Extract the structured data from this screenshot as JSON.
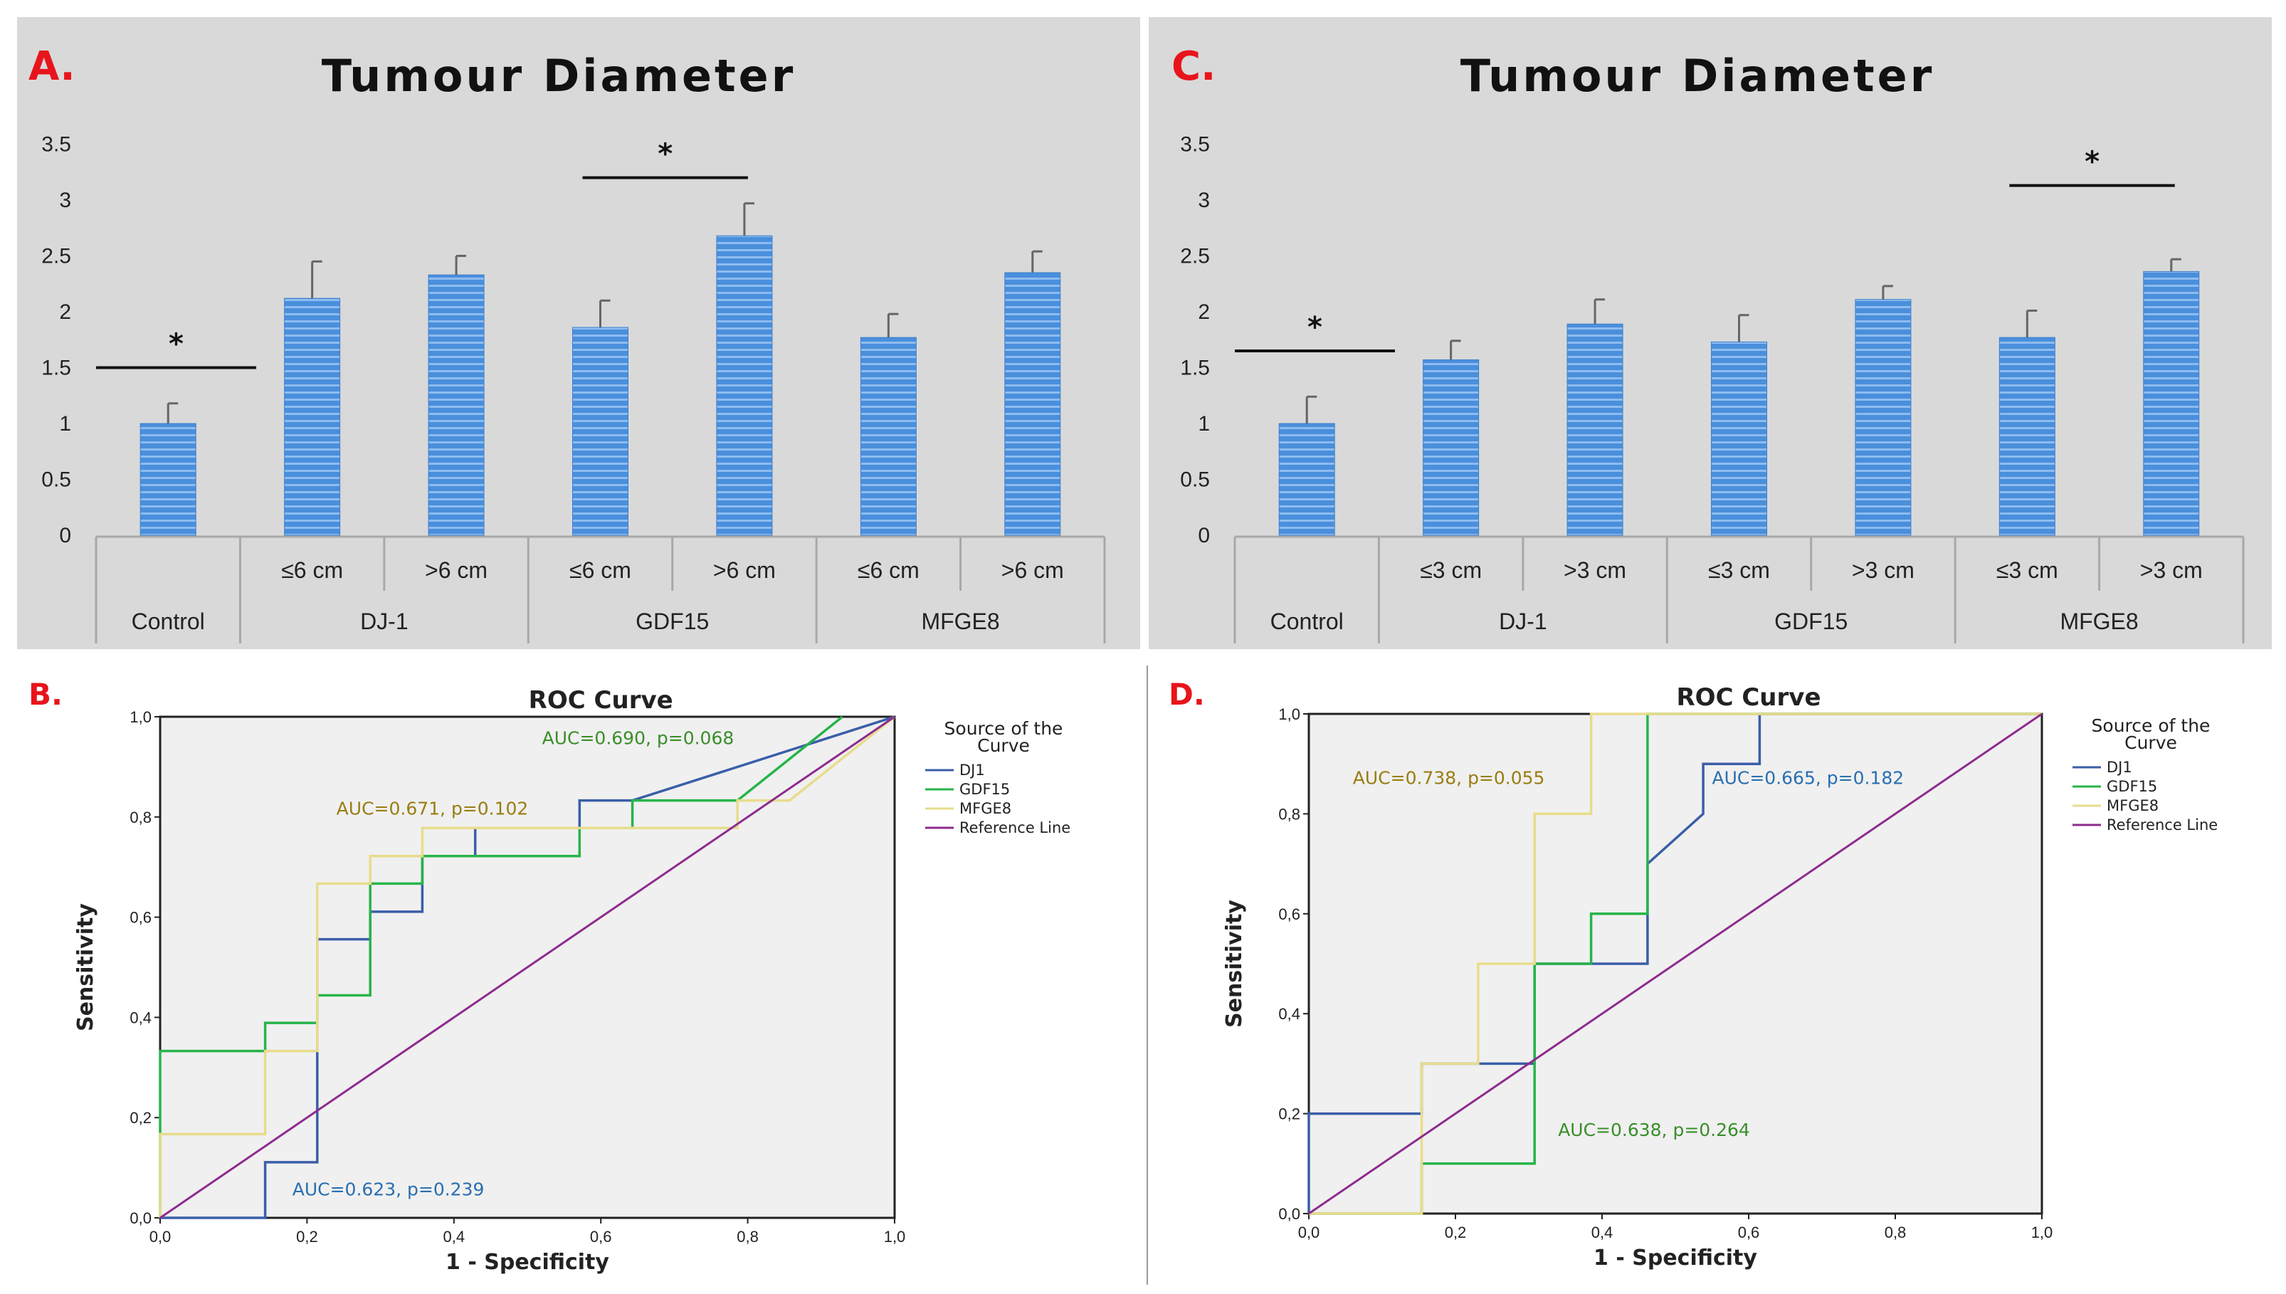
{
  "panels": {
    "A": {
      "letter": "A."
    },
    "B": {
      "letter": "B."
    },
    "C": {
      "letter": "C."
    },
    "D": {
      "letter": "D."
    }
  },
  "colors": {
    "panel_bg": "#d9d9d9",
    "bar_fill": "#4a8fdc",
    "bar_stripe": "#8fbcf0",
    "letter": "#e8141b",
    "roc_bg": "#f0f0f0",
    "dj1": "#3a5ea8",
    "gdf15": "#27b44a",
    "mfge8": "#e8dc8c",
    "reference": "#8e2b8e",
    "auc_gold": "#9a7d12",
    "auc_blue": "#2a6fb0",
    "auc_green": "#3a8e2a"
  },
  "chart_data": [
    {
      "panel": "A",
      "type": "bar",
      "title": "Tumour Diameter",
      "ylim": [
        0,
        3.5
      ],
      "yticks": [
        "0",
        "0.5",
        "1",
        "1.5",
        "2",
        "2.5",
        "3",
        "3.5"
      ],
      "groups": [
        "Control",
        "DJ-1",
        "GDF15",
        "MFGE8"
      ],
      "categories": [
        "",
        "≤6 cm",
        ">6 cm",
        "≤6 cm",
        ">6 cm",
        "≤6 cm",
        ">6 cm"
      ],
      "values": [
        1.0,
        2.12,
        2.33,
        1.86,
        2.68,
        1.77,
        2.35
      ],
      "errors": [
        0.18,
        0.33,
        0.17,
        0.24,
        0.29,
        0.21,
        0.19
      ],
      "significance": [
        {
          "label": "*",
          "from": 0,
          "to": 0,
          "y": 1.5
        },
        {
          "label": "*",
          "from": 3,
          "to": 4,
          "y": 3.2
        }
      ]
    },
    {
      "panel": "C",
      "type": "bar",
      "title": "Tumour Diameter",
      "ylim": [
        0,
        3.5
      ],
      "yticks": [
        "0",
        "0.5",
        "1",
        "1.5",
        "2",
        "2.5",
        "3",
        "3.5"
      ],
      "groups": [
        "Control",
        "DJ-1",
        "GDF15",
        "MFGE8"
      ],
      "categories": [
        "",
        "≤3 cm",
        ">3 cm",
        "≤3 cm",
        ">3 cm",
        "≤3 cm",
        ">3 cm"
      ],
      "values": [
        1.0,
        1.57,
        1.89,
        1.73,
        2.11,
        1.77,
        2.36
      ],
      "errors": [
        0.24,
        0.17,
        0.22,
        0.24,
        0.12,
        0.24,
        0.11
      ],
      "significance": [
        {
          "label": "*",
          "from": 0,
          "to": 0,
          "y": 1.65
        },
        {
          "label": "*",
          "from": 5,
          "to": 6,
          "y": 3.13
        }
      ]
    },
    {
      "panel": "B",
      "type": "line",
      "title": "ROC Curve",
      "xlabel": "1 - Specificity",
      "ylabel": "Sensitivity",
      "xlim": [
        0,
        1
      ],
      "ylim": [
        0,
        1
      ],
      "ticks": [
        "0,0",
        "0,2",
        "0,4",
        "0,6",
        "0,8",
        "1,0"
      ],
      "legend_title": [
        "Source of the",
        "Curve"
      ],
      "series": [
        {
          "name": "DJ1",
          "color_key": "dj1",
          "x": [
            0,
            0.143,
            0.143,
            0.214,
            0.214,
            0.286,
            0.286,
            0.357,
            0.357,
            0.429,
            0.429,
            0.571,
            0.571,
            0.643,
            0.643,
            1.0
          ],
          "y": [
            0,
            0,
            0.111,
            0.111,
            0.556,
            0.556,
            0.611,
            0.611,
            0.722,
            0.722,
            0.778,
            0.778,
            0.833,
            0.833,
            0.833,
            1.0
          ]
        },
        {
          "name": "GDF15",
          "color_key": "gdf15",
          "x": [
            0,
            0,
            0.143,
            0.143,
            0.214,
            0.214,
            0.286,
            0.286,
            0.357,
            0.357,
            0.571,
            0.571,
            0.643,
            0.643,
            0.786,
            0.929
          ],
          "y": [
            0,
            0.333,
            0.333,
            0.389,
            0.389,
            0.444,
            0.444,
            0.667,
            0.667,
            0.722,
            0.722,
            0.778,
            0.778,
            0.833,
            0.833,
            1.0
          ]
        },
        {
          "name": "MFGE8",
          "color_key": "mfge8",
          "x": [
            0,
            0,
            0.143,
            0.143,
            0.214,
            0.214,
            0.286,
            0.286,
            0.357,
            0.357,
            0.786,
            0.786,
            0.857,
            1.0
          ],
          "y": [
            0,
            0.167,
            0.167,
            0.333,
            0.333,
            0.667,
            0.667,
            0.722,
            0.722,
            0.778,
            0.778,
            0.833,
            0.833,
            1.0
          ]
        },
        {
          "name": "Reference Line",
          "color_key": "reference",
          "x": [
            0,
            1
          ],
          "y": [
            0,
            1
          ]
        }
      ],
      "annotations": [
        {
          "text": "AUC=0.690, p=0.068",
          "x": 0.52,
          "y": 0.945,
          "color_key": "auc_green"
        },
        {
          "text": "AUC=0.671, p=0.102",
          "x": 0.24,
          "y": 0.805,
          "color_key": "auc_gold"
        },
        {
          "text": "AUC=0.623, p=0.239",
          "x": 0.18,
          "y": 0.045,
          "color_key": "auc_blue"
        }
      ]
    },
    {
      "panel": "D",
      "type": "line",
      "title": "ROC Curve",
      "xlabel": "1 - Specificity",
      "ylabel": "Sensitivity",
      "xlim": [
        0,
        1
      ],
      "ylim": [
        0,
        1
      ],
      "ticks": [
        "0,0",
        "0,2",
        "0,4",
        "0,6",
        "0,8",
        "1,0"
      ],
      "legend_title": [
        "Source of the",
        "Curve"
      ],
      "series": [
        {
          "name": "DJ1",
          "color_key": "dj1",
          "x": [
            0,
            0,
            0.154,
            0.154,
            0.231,
            0.231,
            0.308,
            0.308,
            0.385,
            0.385,
            0.462,
            0.462,
            0.538,
            0.538,
            0.615,
            0.615,
            1.0
          ],
          "y": [
            0,
            0.2,
            0.2,
            0.3,
            0.3,
            0.3,
            0.3,
            0.5,
            0.5,
            0.5,
            0.5,
            0.7,
            0.8,
            0.9,
            0.9,
            1.0,
            1.0
          ]
        },
        {
          "name": "GDF15",
          "color_key": "gdf15",
          "x": [
            0,
            0.154,
            0.154,
            0.308,
            0.308,
            0.385,
            0.385,
            0.462,
            0.462,
            1.0
          ],
          "y": [
            0,
            0,
            0.1,
            0.1,
            0.5,
            0.5,
            0.6,
            0.6,
            1.0,
            1.0
          ]
        },
        {
          "name": "MFGE8",
          "color_key": "mfge8",
          "x": [
            0,
            0.154,
            0.154,
            0.231,
            0.231,
            0.308,
            0.308,
            0.385,
            0.385,
            1.0
          ],
          "y": [
            0,
            0,
            0.3,
            0.3,
            0.5,
            0.5,
            0.8,
            0.8,
            1.0,
            1.0
          ]
        },
        {
          "name": "Reference Line",
          "color_key": "reference",
          "x": [
            0,
            1
          ],
          "y": [
            0,
            1
          ]
        }
      ],
      "annotations": [
        {
          "text": "AUC=0.738, p=0.055",
          "x": 0.06,
          "y": 0.86,
          "color_key": "auc_gold"
        },
        {
          "text": "AUC=0.665, p=0.182",
          "x": 0.55,
          "y": 0.86,
          "color_key": "auc_blue"
        },
        {
          "text": "AUC=0.638, p=0.264",
          "x": 0.34,
          "y": 0.155,
          "color_key": "auc_green"
        }
      ]
    }
  ]
}
